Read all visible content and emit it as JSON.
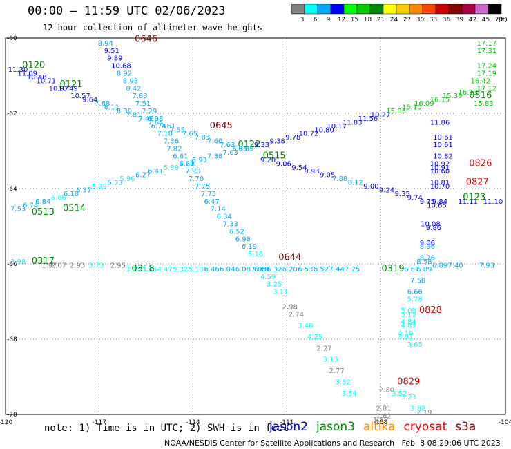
{
  "title": "00:00 — 11:59 UTC 02/06/2023",
  "subtitle": "12 hour collection of altimeter wave heights",
  "note": "note: 1) Time is in UTC; 2) SWH is in feet",
  "credit": "NOAA/NESDIS Center for Satellite Applications and Research   Feb  8 08:29:06 UTC 2023",
  "satellites": [
    {
      "name": "jason2",
      "color": "#0000cc"
    },
    {
      "name": "jason3",
      "color": "#008800"
    },
    {
      "name": "altika",
      "color": "#ff8800"
    },
    {
      "name": "cryosat",
      "color": "#ee0000"
    },
    {
      "name": "s3a",
      "color": "#880000"
    }
  ],
  "colorbar": {
    "labels": [
      "3",
      "6",
      "9",
      "12",
      "15",
      "18",
      "21",
      "24",
      "27",
      "30",
      "33",
      "36",
      "39",
      "42",
      "45",
      "70"
    ],
    "unit": "(ft)",
    "colors": [
      "#808080",
      "#00ffff",
      "#00aaff",
      "#0000ff",
      "#00ff00",
      "#00cc00",
      "#008800",
      "#ffff00",
      "#ffcc00",
      "#ff8800",
      "#ff4400",
      "#cc0000",
      "#880000",
      "#aa0044",
      "#cc66cc",
      "#000000"
    ]
  },
  "chart_data": {
    "type": "scatter",
    "xlim": [
      -120,
      -104
    ],
    "ylim": [
      -70,
      -60
    ],
    "x_ticks": [
      -120,
      -117,
      -114,
      -111,
      -108,
      -104
    ],
    "x_tick_labels": [
      "-120",
      "-117",
      "-114",
      "-111",
      "-108",
      "-104"
    ],
    "y_ticks": [
      -60,
      -62,
      -64,
      -66,
      -68,
      -70
    ],
    "y_tick_labels": [
      "-60",
      "-62",
      "-64",
      "-66",
      "-68",
      "-70"
    ],
    "grid": true,
    "tracks": [
      {
        "label": "0646",
        "color": "#880000",
        "label_pos": [
          -115.5,
          -60.1
        ],
        "points": [
          [
            -116.8,
            -60.2,
            8.94
          ],
          [
            -116.6,
            -60.4,
            9.51
          ],
          [
            -116.5,
            -60.6,
            9.89
          ],
          [
            -116.3,
            -60.8,
            10.68
          ],
          [
            -116.2,
            -61.0,
            8.92
          ],
          [
            -116.0,
            -61.2,
            8.93
          ],
          [
            -115.9,
            -61.4,
            8.42
          ],
          [
            -115.7,
            -61.6,
            7.83
          ],
          [
            -115.6,
            -61.8,
            7.51
          ],
          [
            -115.4,
            -62.0,
            7.29
          ],
          [
            -115.2,
            -62.2,
            6.98
          ],
          [
            -115.1,
            -62.4,
            6.74
          ],
          [
            -114.9,
            -62.6,
            7.18
          ],
          [
            -114.7,
            -62.8,
            7.36
          ],
          [
            -114.6,
            -63.0,
            7.82
          ],
          [
            -114.4,
            -63.2,
            6.61
          ],
          [
            -114.2,
            -63.4,
            7.2
          ],
          [
            -114.0,
            -63.6,
            7.9
          ],
          [
            -113.9,
            -63.8,
            7.7
          ],
          [
            -113.7,
            -64.0,
            7.75
          ]
        ]
      },
      {
        "label": "0645",
        "color": "#880000",
        "label_pos": [
          -113.1,
          -62.4
        ],
        "points": [
          [
            -113.5,
            -64.2,
            7.75
          ],
          [
            -113.4,
            -64.4,
            6.47
          ],
          [
            -113.2,
            -64.6,
            7.14
          ],
          [
            -113.0,
            -64.8,
            6.34
          ],
          [
            -112.8,
            -65.0,
            7.33
          ],
          [
            -112.6,
            -65.2,
            6.52
          ],
          [
            -112.4,
            -65.4,
            6.98
          ],
          [
            -112.2,
            -65.6,
            6.19
          ],
          [
            -112.0,
            -65.8,
            5.18
          ],
          [
            -111.8,
            -66.2,
            6.69
          ],
          [
            -111.6,
            -66.4,
            4.59
          ],
          [
            -111.4,
            -66.6,
            3.25
          ],
          [
            -111.2,
            -66.8,
            3.11
          ],
          [
            -110.9,
            -67.2,
            2.98
          ],
          [
            -110.7,
            -67.4,
            2.74
          ],
          [
            -110.4,
            -67.7,
            3.4
          ],
          [
            -110.1,
            -68.0,
            4.25
          ],
          [
            -109.8,
            -68.3,
            2.27
          ],
          [
            -109.6,
            -68.6,
            3.13
          ],
          [
            -109.4,
            -68.9,
            2.77
          ],
          [
            -109.2,
            -69.2,
            3.52
          ],
          [
            -109.0,
            -69.5,
            3.54
          ]
        ]
      },
      {
        "label": "0644",
        "color": "#880000",
        "label_pos": [
          -110.9,
          -65.9
        ],
        "points": []
      },
      {
        "label": "0120",
        "color": "#008800",
        "label_pos": [
          -119.1,
          -60.8
        ],
        "points": [
          [
            -119.6,
            -60.9,
            11.3
          ],
          [
            -119.3,
            -61.0,
            11.09
          ],
          [
            -119.0,
            -61.1,
            10.48
          ],
          [
            -118.7,
            -61.2,
            10.71
          ],
          [
            -118.3,
            -61.4,
            10.97
          ],
          [
            -118.0,
            -61.4,
            10.49
          ],
          [
            -117.6,
            -61.6,
            10.57
          ],
          [
            -117.3,
            -61.7,
            9.64
          ],
          [
            -116.9,
            -61.8,
            7.68
          ],
          [
            -116.6,
            -61.9,
            8.11
          ],
          [
            -116.2,
            -62.0,
            8.39
          ],
          [
            -115.9,
            -62.1,
            7.81
          ],
          [
            -115.5,
            -62.2,
            7.46
          ],
          [
            -115.2,
            -62.3,
            7.64
          ],
          [
            -114.8,
            -62.4,
            7.61
          ],
          [
            -114.5,
            -62.5,
            7.55
          ],
          [
            -114.1,
            -62.6,
            7.65
          ],
          [
            -113.7,
            -62.7,
            7.83
          ],
          [
            -113.3,
            -62.8,
            7.6
          ],
          [
            -112.9,
            -62.9,
            7.63
          ],
          [
            -112.5,
            -63.0,
            6.85
          ]
        ]
      },
      {
        "label": "0121",
        "color": "#008800",
        "label_pos": [
          -117.9,
          -61.3
        ],
        "points": []
      },
      {
        "label": "0122",
        "color": "#008800",
        "label_pos": [
          -112.2,
          -62.9
        ],
        "points": [
          [
            -111.6,
            -63.3,
            9.2
          ],
          [
            -111.1,
            -63.4,
            9.06
          ],
          [
            -110.6,
            -63.5,
            9.54
          ],
          [
            -110.2,
            -63.6,
            9.93
          ],
          [
            -109.7,
            -63.7,
            9.05
          ],
          [
            -109.3,
            -63.8,
            7.88
          ],
          [
            -108.8,
            -63.9,
            8.12
          ],
          [
            -108.3,
            -64.0,
            9.0
          ],
          [
            -107.8,
            -64.1,
            9.24
          ],
          [
            -107.3,
            -64.2,
            9.35
          ],
          [
            -106.9,
            -64.3,
            9.74
          ],
          [
            -106.5,
            -64.4,
            9.75
          ],
          [
            -106.1,
            -64.4,
            9.84
          ]
        ]
      },
      {
        "label": "0515",
        "color": "#008800",
        "label_pos": [
          -111.4,
          -63.2
        ],
        "points": [
          [
            -119.6,
            -64.6,
            7.53
          ],
          [
            -119.2,
            -64.5,
            6.74
          ],
          [
            -118.8,
            -64.4,
            6.84
          ],
          [
            -118.3,
            -64.3,
            5.66
          ],
          [
            -117.9,
            -64.2,
            6.18
          ],
          [
            -117.5,
            -64.1,
            6.37
          ],
          [
            -117.0,
            -64.0,
            5.99
          ],
          [
            -116.5,
            -63.9,
            6.33
          ],
          [
            -116.1,
            -63.8,
            5.96
          ],
          [
            -115.6,
            -63.7,
            6.27
          ],
          [
            -115.2,
            -63.6,
            6.41
          ],
          [
            -114.7,
            -63.5,
            5.89
          ],
          [
            -114.2,
            -63.4,
            6.61
          ],
          [
            -113.8,
            -63.3,
            6.93
          ],
          [
            -113.3,
            -63.2,
            7.38
          ],
          [
            -112.8,
            -63.1,
            7.63
          ],
          [
            -112.3,
            -63.0,
            6.85
          ],
          [
            -111.8,
            -62.9,
            9.33
          ],
          [
            -111.3,
            -62.8,
            9.38
          ],
          [
            -110.8,
            -62.7,
            9.78
          ],
          [
            -110.3,
            -62.6,
            10.72
          ],
          [
            -109.8,
            -62.5,
            10.8
          ],
          [
            -109.4,
            -62.4,
            10.17
          ],
          [
            -108.9,
            -62.3,
            11.83
          ],
          [
            -108.4,
            -62.2,
            11.56
          ],
          [
            -108.0,
            -62.1,
            10.27
          ],
          [
            -107.5,
            -62.0,
            15.05
          ],
          [
            -107.0,
            -61.9,
            15.1
          ],
          [
            -106.6,
            -61.8,
            16.09
          ],
          [
            -106.1,
            -61.7,
            16.15
          ],
          [
            -105.7,
            -61.6,
            15.39
          ],
          [
            -105.2,
            -61.5,
            16.13
          ]
        ]
      },
      {
        "label": "0513",
        "color": "#008800",
        "label_pos": [
          -118.8,
          -64.7
        ],
        "points": []
      },
      {
        "label": "0514",
        "color": "#008800",
        "label_pos": [
          -117.8,
          -64.6
        ],
        "points": []
      },
      {
        "label": "0516",
        "color": "#008800",
        "label_pos": [
          -104.8,
          -61.6
        ],
        "points": [
          [
            -104.6,
            -60.2,
            17.17
          ],
          [
            -104.6,
            -60.4,
            17.31
          ],
          [
            -104.6,
            -60.8,
            17.24
          ],
          [
            -104.6,
            -61.0,
            17.19
          ],
          [
            -104.8,
            -61.2,
            16.42
          ],
          [
            -104.6,
            -61.4,
            17.12
          ],
          [
            -104.7,
            -61.8,
            15.83
          ]
        ]
      },
      {
        "label": "0317",
        "color": "#008800",
        "label_pos": [
          -118.8,
          -66.0
        ],
        "points": [
          [
            -119.6,
            -66.0,
            3.98
          ],
          [
            -118.6,
            -66.1,
            1.97
          ],
          [
            -118.3,
            -66.1,
            2.07
          ],
          [
            -117.7,
            -66.1,
            2.93
          ],
          [
            -117.1,
            -66.1,
            3.73
          ],
          [
            -116.4,
            -66.1,
            2.95
          ],
          [
            -115.9,
            -66.2,
            3.25
          ],
          [
            -115.4,
            -66.2,
            3.36
          ],
          [
            -114.9,
            -66.2,
            4.47
          ],
          [
            -114.4,
            -66.2,
            5.32
          ],
          [
            -113.9,
            -66.2,
            5.13
          ],
          [
            -113.4,
            -66.2,
            6.46
          ],
          [
            -112.9,
            -66.2,
            6.04
          ],
          [
            -112.4,
            -66.2,
            6.08
          ],
          [
            -111.9,
            -66.2,
            7.08
          ],
          [
            -111.4,
            -66.2,
            6.32
          ],
          [
            -110.9,
            -66.2,
            6.2
          ],
          [
            -110.4,
            -66.2,
            6.53
          ],
          [
            -109.9,
            -66.2,
            6.52
          ],
          [
            -109.4,
            -66.2,
            7.44
          ],
          [
            -108.9,
            -66.2,
            7.25
          ]
        ]
      },
      {
        "label": "0318",
        "color": "#008800",
        "label_pos": [
          -115.6,
          -66.2
        ],
        "points": []
      },
      {
        "label": "0319",
        "color": "#008800",
        "label_pos": [
          -107.6,
          -66.2
        ],
        "points": [
          [
            -107.0,
            -66.2,
            6.67
          ],
          [
            -106.6,
            -66.2,
            6.89
          ],
          [
            -106.1,
            -66.1,
            6.89
          ],
          [
            -105.6,
            -66.1,
            7.4
          ],
          [
            -104.6,
            -66.1,
            7.93
          ]
        ]
      },
      {
        "label": "0123",
        "color": "#008800",
        "label_pos": [
          -105.0,
          -64.3
        ],
        "points": [
          [
            -105.2,
            -64.4,
            11.11
          ],
          [
            -104.4,
            -64.4,
            11.1
          ]
        ]
      },
      {
        "label": "0826",
        "color": "#ee0000",
        "label_pos": [
          -104.8,
          -63.4
        ],
        "points": [
          [
            -106.1,
            -62.3,
            11.86
          ],
          [
            -106.0,
            -62.7,
            10.61
          ],
          [
            -106.0,
            -62.9,
            10.61
          ],
          [
            -106.0,
            -63.2,
            10.82
          ],
          [
            -106.1,
            -63.4,
            10.92
          ],
          [
            -106.1,
            -63.5,
            10.91
          ],
          [
            -106.1,
            -63.6,
            10.6
          ],
          [
            -106.1,
            -63.9,
            10.81
          ],
          [
            -106.1,
            -64.0,
            10.7
          ],
          [
            -106.2,
            -64.5,
            10.65
          ]
        ]
      },
      {
        "label": "0827",
        "color": "#ee0000",
        "label_pos": [
          -104.9,
          -63.9
        ],
        "points": [
          [
            -106.4,
            -65.0,
            10.08
          ],
          [
            -106.3,
            -65.1,
            9.86
          ],
          [
            -106.5,
            -65.5,
            9.06
          ],
          [
            -106.5,
            -65.6,
            8.96
          ],
          [
            -106.5,
            -65.9,
            8.76
          ],
          [
            -106.6,
            -66.0,
            8.58
          ],
          [
            -106.8,
            -66.5,
            7.58
          ],
          [
            -106.9,
            -66.8,
            6.66
          ],
          [
            -106.9,
            -67.0,
            5.78
          ],
          [
            -107.1,
            -67.3,
            5.08
          ],
          [
            -107.1,
            -67.4,
            5.15
          ],
          [
            -107.1,
            -67.6,
            4.84
          ],
          [
            -107.1,
            -67.7,
            4.85
          ],
          [
            -107.2,
            -67.9,
            4.19
          ],
          [
            -107.2,
            -68.0,
            3.91
          ],
          [
            -106.9,
            -68.2,
            3.65
          ]
        ]
      },
      {
        "label": "0828",
        "color": "#ee0000",
        "label_pos": [
          -106.4,
          -67.3
        ],
        "points": []
      },
      {
        "label": "0829",
        "color": "#ee0000",
        "label_pos": [
          -107.1,
          -69.2
        ],
        "points": [
          [
            -107.8,
            -69.4,
            2.8
          ],
          [
            -107.4,
            -69.5,
            3.52
          ],
          [
            -107.1,
            -69.6,
            3.23
          ],
          [
            -106.8,
            -69.9,
            3.82
          ],
          [
            -106.6,
            -70.0,
            2.19
          ],
          [
            -107.9,
            -69.9,
            2.81
          ],
          [
            -107.9,
            -70.1,
            1.62
          ],
          [
            -108.0,
            -70.2,
            1.52
          ]
        ]
      }
    ]
  }
}
